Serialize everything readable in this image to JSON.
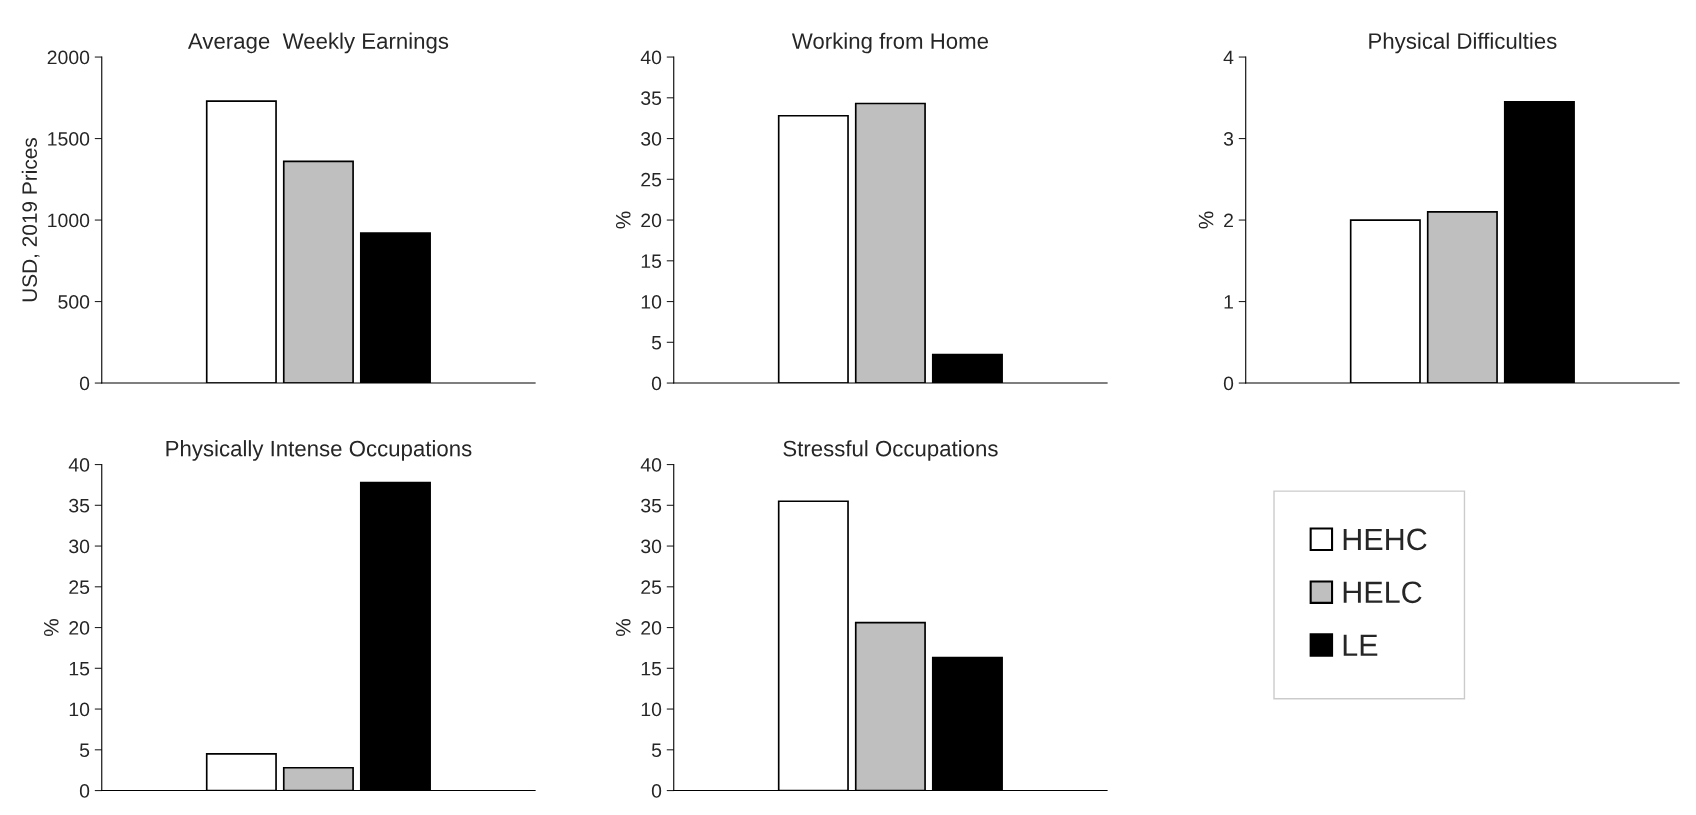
{
  "chart_data": [
    {
      "type": "bar",
      "title": "Average  Weekly Earnings",
      "ylabel": "USD, 2019 Prices",
      "categories": [
        null
      ],
      "ylim": [
        0,
        2000
      ],
      "yticks": [
        0,
        500,
        1000,
        1500,
        2000
      ],
      "series": [
        {
          "color": "#ffffff",
          "values": [
            1730
          ]
        },
        {
          "color": "#bfbfbf",
          "values": [
            1360
          ]
        },
        {
          "color": "#000000",
          "values": [
            920
          ]
        }
      ]
    },
    {
      "type": "bar",
      "title": "Working from Home",
      "ylabel": "%",
      "categories": [
        null
      ],
      "ylim": [
        0,
        40
      ],
      "yticks": [
        0,
        5,
        10,
        15,
        20,
        25,
        30,
        35,
        40
      ],
      "series": [
        {
          "color": "#ffffff",
          "values": [
            32.8
          ]
        },
        {
          "color": "#bfbfbf",
          "values": [
            34.3
          ]
        },
        {
          "color": "#000000",
          "values": [
            3.5
          ]
        }
      ]
    },
    {
      "type": "bar",
      "title": "Physical Difficulties",
      "ylabel": "%",
      "categories": [
        null
      ],
      "ylim": [
        0,
        4
      ],
      "yticks": [
        0,
        1,
        2,
        3,
        4
      ],
      "series": [
        {
          "color": "#ffffff",
          "values": [
            2.0
          ]
        },
        {
          "color": "#bfbfbf",
          "values": [
            2.1
          ]
        },
        {
          "color": "#000000",
          "values": [
            3.45
          ]
        }
      ]
    },
    {
      "type": "bar",
      "title": "Physically Intense Occupations",
      "ylabel": "%",
      "categories": [
        null
      ],
      "ylim": [
        0,
        40
      ],
      "yticks": [
        0,
        5,
        10,
        15,
        20,
        25,
        30,
        35,
        40
      ],
      "series": [
        {
          "color": "#ffffff",
          "values": [
            4.5
          ]
        },
        {
          "color": "#bfbfbf",
          "values": [
            2.8
          ]
        },
        {
          "color": "#000000",
          "values": [
            37.8
          ]
        }
      ]
    },
    {
      "type": "bar",
      "title": "Stressful Occupations",
      "ylabel": "%",
      "categories": [
        null
      ],
      "ylim": [
        0,
        40
      ],
      "yticks": [
        0,
        5,
        10,
        15,
        20,
        25,
        30,
        35,
        40
      ],
      "legend": "right",
      "series": [
        {
          "name": "HEHC",
          "color": "#ffffff",
          "values": [
            35.5
          ]
        },
        {
          "name": "HELC",
          "color": "#bfbfbf",
          "values": [
            20.6
          ]
        },
        {
          "name": "LE",
          "color": "#000000",
          "values": [
            16.3
          ]
        }
      ]
    }
  ]
}
